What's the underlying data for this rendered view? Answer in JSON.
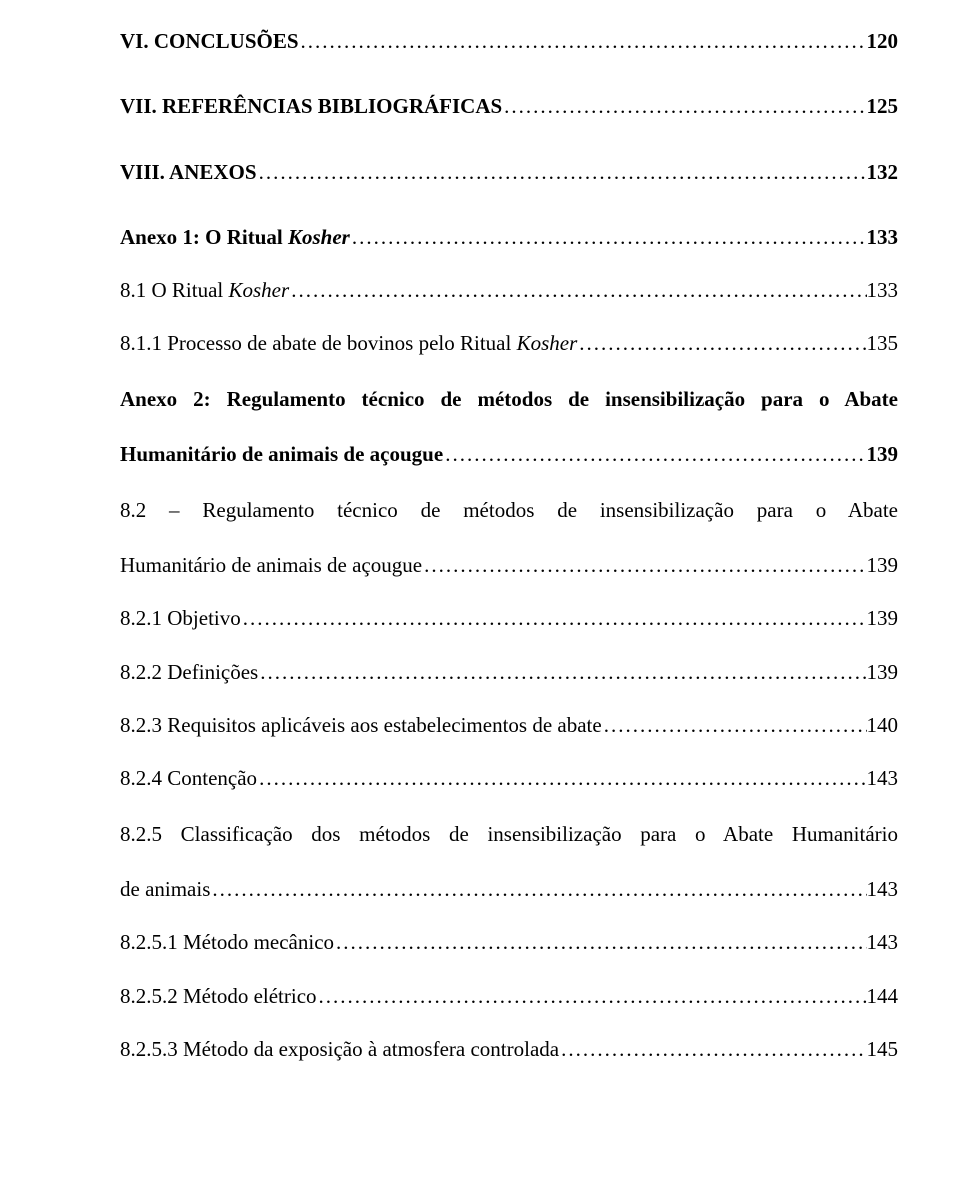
{
  "text_color": "#000000",
  "background_color": "#ffffff",
  "font_family": "Times New Roman",
  "base_font_size_pt": 16,
  "entries": {
    "e1": {
      "prefix": "VI.   ",
      "title": "CONCLUSÕES",
      "page": "120",
      "bold": true
    },
    "e2": {
      "prefix": "VII.  ",
      "title": "REFERÊNCIAS BIBLIOGRÁFICAS",
      "page": "125",
      "bold": true
    },
    "e3": {
      "prefix": "VIII. ",
      "title": "ANEXOS",
      "page": " 132",
      "bold": true
    },
    "e4": {
      "title_a": "Anexo 1: O Ritual ",
      "title_b": "Kosher",
      "page": "133",
      "bold": true
    },
    "e5": {
      "title_a": "8.1 O Ritual ",
      "title_b": "Kosher",
      "page": "133"
    },
    "e6": {
      "title_a": "8.1.1 Processo de abate de bovinos pelo Ritual ",
      "title_b": "Kosher",
      "page": "135"
    },
    "e7": {
      "line1": "Anexo 2: Regulamento técnico de métodos de insensibilização para o Abate",
      "line2": "Humanitário de animais de açougue",
      "page": "139",
      "bold": true
    },
    "e8": {
      "line1": "8.2 – Regulamento técnico de métodos de insensibilização para o Abate",
      "line2": "Humanitário de animais de açougue",
      "page": "139"
    },
    "e9": {
      "title": "8.2.1 Objetivo",
      "page": "139"
    },
    "e10": {
      "title": "8.2.2 Definições",
      "page": "139"
    },
    "e11": {
      "title": "8.2.3 Requisitos aplicáveis aos estabelecimentos de abate",
      "page": "140"
    },
    "e12": {
      "title": "8.2.4 Contenção",
      "page": "143"
    },
    "e13": {
      "line1": "8.2.5 Classificação dos métodos de insensibilização para o Abate Humanitário",
      "line2": "de animais",
      "page": "143"
    },
    "e14": {
      "title": "8.2.5.1 Método mecânico",
      "page": "143"
    },
    "e15": {
      "title": "8.2.5.2 Método elétrico",
      "page": "144"
    },
    "e16": {
      "title": "8.2.5.3 Método da exposição à atmosfera controlada",
      "page": "145"
    }
  }
}
